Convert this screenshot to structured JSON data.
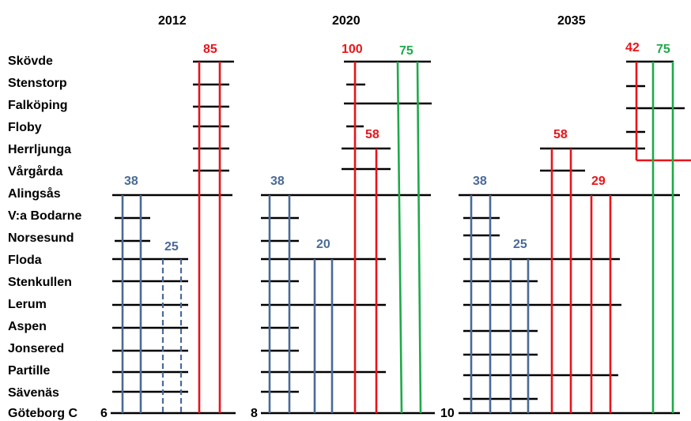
{
  "colors": {
    "blue": "#4a6a98",
    "red": "#e8141a",
    "green": "#1eaa4a",
    "black": "#000000"
  },
  "stations": [
    "Skövde",
    "Stenstorp",
    "Falköping",
    "Floby",
    "Herrljunga",
    "Vårgårda",
    "Alingsås",
    "V:a Bodarne",
    "Norsesund",
    "Floda",
    "Stenkullen",
    "Lerum",
    "Aspen",
    "Jonsered",
    "Partille",
    "Sävenäs",
    "Göteborg C"
  ],
  "panels": [
    {
      "year": "2012",
      "base_number": "6",
      "groups": [
        {
          "color": "blue",
          "label": "38",
          "from": "Alingsås",
          "to": "Göteborg C",
          "dashed": false
        },
        {
          "color": "blue",
          "label": "25",
          "from": "Floda",
          "to": "Göteborg C",
          "dashed": true
        },
        {
          "color": "red",
          "label": "85",
          "from": "Skövde",
          "to": "Göteborg C",
          "dashed": false
        }
      ]
    },
    {
      "year": "2020",
      "base_number": "8",
      "groups": [
        {
          "color": "blue",
          "label": "38",
          "from": "Alingsås",
          "to": "Göteborg C",
          "dashed": false
        },
        {
          "color": "blue",
          "label": "20",
          "from": "Floda",
          "to": "Göteborg C",
          "dashed": false
        },
        {
          "color": "red",
          "label": "100",
          "from": "Skövde",
          "to": "Göteborg C",
          "dashed": false
        },
        {
          "color": "red",
          "label": "58",
          "from": "Herrljunga",
          "to": "Göteborg C",
          "dashed": false
        },
        {
          "color": "green",
          "label": "75",
          "from": "Skövde",
          "to": "Göteborg C",
          "dashed": false
        }
      ]
    },
    {
      "year": "2035",
      "base_number": "10",
      "groups": [
        {
          "color": "blue",
          "label": "38",
          "from": "Alingsås",
          "to": "Göteborg C",
          "dashed": false
        },
        {
          "color": "blue",
          "label": "25",
          "from": "Floda",
          "to": "Göteborg C",
          "dashed": false
        },
        {
          "color": "red",
          "label": "58",
          "from": "Herrljunga",
          "to": "Göteborg C",
          "dashed": false
        },
        {
          "color": "red",
          "label": "29",
          "from": "Alingsås",
          "to": "Göteborg C",
          "dashed": false
        },
        {
          "color": "red",
          "label": "42",
          "from": "Skövde",
          "to": "Herrljunga",
          "dashed": false
        },
        {
          "color": "green",
          "label": "75",
          "from": "Skövde",
          "to": "Göteborg C",
          "dashed": false
        }
      ]
    }
  ]
}
